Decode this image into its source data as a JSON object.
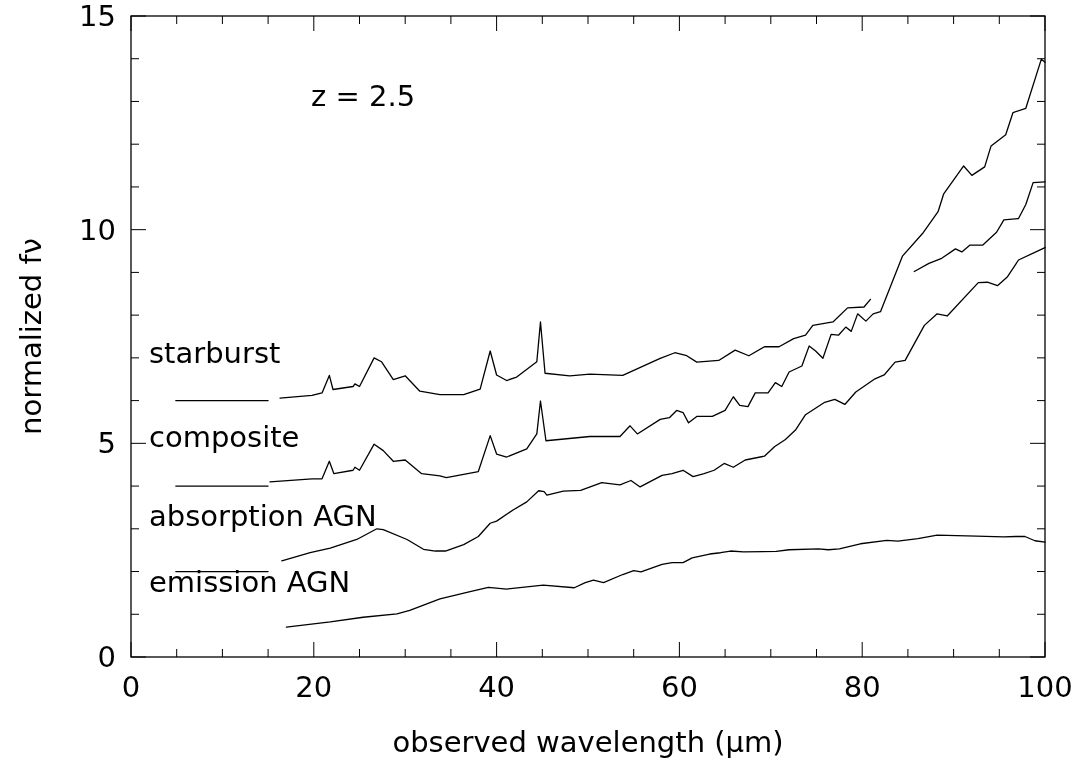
{
  "chart_data": {
    "type": "line",
    "xlabel": "observed wavelength (μm)",
    "ylabel": "normalized fν",
    "annotations": [
      "z = 2.5"
    ],
    "xlim": [
      0,
      100
    ],
    "ylim": [
      0,
      15
    ],
    "xticks": [
      0,
      {
        "value": 5,
        "label": null
      },
      {
        "value": 10,
        "label": null
      },
      {
        "value": 15,
        "label": null
      },
      20,
      {
        "value": 25,
        "label": null
      },
      {
        "value": 30,
        "label": null
      },
      {
        "value": 35,
        "label": null
      },
      40,
      {
        "value": 45,
        "label": null
      },
      {
        "value": 50,
        "label": null
      },
      {
        "value": 55,
        "label": null
      },
      60,
      {
        "value": 65,
        "label": null
      },
      {
        "value": 70,
        "label": null
      },
      {
        "value": 75,
        "label": null
      },
      80,
      {
        "value": 85,
        "label": null
      },
      {
        "value": 90,
        "label": null
      },
      {
        "value": 95,
        "label": null
      },
      100
    ],
    "yticks": [
      0,
      {
        "value": 1,
        "label": null
      },
      {
        "value": 2,
        "label": null
      },
      {
        "value": 3,
        "label": null
      },
      {
        "value": 4,
        "label": null
      },
      5,
      {
        "value": 6,
        "label": null
      },
      {
        "value": 7,
        "label": null
      },
      {
        "value": 8,
        "label": null
      },
      {
        "value": 9,
        "label": null
      },
      10,
      {
        "value": 11,
        "label": null
      },
      {
        "value": 12,
        "label": null
      },
      {
        "value": 13,
        "label": null
      },
      {
        "value": 14,
        "label": null
      },
      15
    ],
    "grid": false,
    "legend": "left",
    "marker": "none",
    "line_style": "solid",
    "series": [
      {
        "name": "starburst",
        "color": "#000000",
        "x": [
          16.3,
          19.8,
          20.9,
          21.7,
          22.1,
          24.3,
          24.5,
          25.0,
          26.6,
          27.4,
          28.7,
          30.0,
          31.6,
          33.8,
          36.4,
          38.2,
          39.3,
          40.0,
          41.1,
          42.2,
          44.4,
          44.8,
          45.3,
          48.0,
          50.2,
          53.8,
          57.9,
          59.5,
          60.8,
          61.9,
          64.3,
          66.1,
          67.6,
          69.3,
          70.9,
          72.5,
          73.8,
          74.6,
          76.8,
          78.4,
          80.2,
          80.9,
          83.3,
          85.7,
          87.3,
          88.7,
          90.2,
          90.9,
          91.8,
          93.2,
          94.7,
          95.5,
          97.1,
          97.9,
          98.7,
          100
        ],
        "values": [
          6.06,
          6.12,
          6.18,
          6.59,
          6.26,
          6.33,
          6.39,
          6.33,
          7.0,
          6.91,
          6.49,
          6.58,
          6.22,
          6.14,
          6.14,
          6.27,
          7.16,
          6.6,
          6.47,
          6.55,
          6.91,
          7.84,
          6.64,
          6.58,
          6.62,
          6.59,
          6.99,
          7.12,
          7.05,
          6.9,
          6.94,
          7.18,
          7.05,
          7.26,
          7.26,
          7.45,
          7.53,
          7.76,
          7.84,
          8.17,
          8.19,
          8.37,
          null,
          9.02,
          9.21,
          9.33,
          9.55,
          9.48,
          9.64,
          9.64,
          9.94,
          10.23,
          10.26,
          10.59,
          11.1,
          11.12
        ]
      },
      {
        "name": "composite",
        "color": "#000000",
        "x": [
          15.2,
          19.8,
          20.9,
          21.7,
          22.2,
          24.3,
          24.5,
          25.0,
          26.6,
          27.6,
          28.7,
          30.0,
          31.8,
          33.8,
          34.5,
          38.0,
          39.3,
          40.0,
          41.1,
          43.3,
          44.4,
          44.8,
          45.4,
          50.2,
          53.5,
          54.6,
          55.4,
          57.9,
          58.9,
          59.7,
          60.4,
          61.0,
          61.9,
          63.6,
          65.0,
          65.9,
          66.6,
          67.5,
          68.3,
          69.7,
          70.5,
          71.2,
          72.0,
          73.4,
          74.2,
          74.9,
          75.7,
          76.6,
          77.4,
          78.2,
          78.8,
          79.5,
          80.4,
          81.2,
          82.0,
          84.4,
          86.6,
          88.3,
          88.9,
          91.1,
          92.0,
          93.4,
          94.1,
          95.7,
          96.5,
          97.9,
          99.6,
          100
        ],
        "values": [
          4.1,
          4.17,
          4.17,
          4.58,
          4.29,
          4.37,
          4.44,
          4.37,
          4.98,
          4.83,
          4.58,
          4.61,
          4.29,
          4.24,
          4.2,
          4.34,
          5.18,
          4.75,
          4.68,
          4.87,
          5.22,
          5.99,
          5.06,
          5.16,
          5.16,
          5.41,
          5.22,
          5.56,
          5.6,
          5.77,
          5.72,
          5.48,
          5.63,
          5.63,
          5.77,
          6.09,
          5.89,
          5.86,
          6.18,
          6.18,
          6.42,
          6.33,
          6.67,
          6.81,
          7.28,
          7.16,
          6.99,
          7.55,
          7.53,
          7.72,
          7.62,
          8.03,
          7.86,
          8.03,
          8.08,
          9.38,
          9.91,
          10.42,
          10.83,
          11.49,
          11.27,
          11.47,
          11.96,
          12.22,
          12.74,
          12.84,
          13.99,
          13.92
        ]
      },
      {
        "name": "absorption AGN",
        "color": "#000000",
        "x": [
          16.5,
          19.6,
          21.8,
          24.7,
          26.9,
          27.6,
          30.2,
          32.0,
          33.3,
          34.4,
          36.4,
          38.0,
          39.3,
          40.0,
          41.8,
          43.3,
          44.6,
          45.2,
          45.5,
          47.3,
          49.2,
          51.5,
          53.5,
          54.7,
          55.7,
          58.1,
          59.2,
          60.4,
          61.5,
          62.7,
          63.8,
          64.9,
          65.9,
          67.2,
          69.3,
          70.4,
          71.6,
          72.7,
          73.8,
          75.9,
          77.0,
          78.1,
          79.3,
          81.4,
          82.4,
          83.6,
          84.7,
          86.8,
          88.2,
          89.3,
          92.7,
          93.7,
          94.8,
          95.9,
          97.1,
          100
        ],
        "values": [
          2.25,
          2.44,
          2.55,
          2.75,
          3.0,
          2.98,
          2.75,
          2.52,
          2.48,
          2.48,
          2.63,
          2.82,
          3.13,
          3.18,
          3.44,
          3.63,
          3.89,
          3.87,
          3.79,
          3.88,
          3.9,
          4.08,
          4.03,
          4.13,
          3.98,
          4.25,
          4.29,
          4.37,
          4.22,
          4.29,
          4.37,
          4.53,
          4.44,
          4.61,
          4.7,
          4.92,
          5.09,
          5.31,
          5.67,
          5.96,
          6.03,
          5.91,
          6.2,
          6.51,
          6.6,
          6.9,
          6.94,
          7.76,
          8.03,
          7.98,
          8.76,
          8.77,
          8.69,
          8.9,
          9.29,
          9.58
        ]
      },
      {
        "name": "emission AGN",
        "color": "#000000",
        "x": [
          17.0,
          21.8,
          25.4,
          29.1,
          30.5,
          33.8,
          37.1,
          39.1,
          41.1,
          45.1,
          48.5,
          49.7,
          50.6,
          51.7,
          53.8,
          55.0,
          55.8,
          58.1,
          59.2,
          60.4,
          61.4,
          63.3,
          64.5,
          65.6,
          67.0,
          70.6,
          72.0,
          75.2,
          76.3,
          77.5,
          79.8,
          82.7,
          83.9,
          86.1,
          88.2,
          92.5,
          95.5,
          96.8,
          97.8,
          98.9,
          100
        ],
        "values": [
          0.7,
          0.82,
          0.93,
          1.01,
          1.09,
          1.36,
          1.53,
          1.63,
          1.59,
          1.68,
          1.62,
          1.74,
          1.8,
          1.74,
          1.93,
          2.02,
          1.99,
          2.17,
          2.21,
          2.21,
          2.32,
          2.41,
          2.44,
          2.48,
          2.46,
          2.47,
          2.51,
          2.53,
          2.51,
          2.53,
          2.65,
          2.73,
          2.71,
          2.77,
          2.85,
          2.83,
          2.81,
          2.82,
          2.82,
          2.72,
          2.69
        ]
      },
      {
        "color": "#000000",
        "x": [
          4.9,
          15.0
        ],
        "values": [
          6,
          6
        ]
      },
      {
        "color": "#000000",
        "x": [
          4.9,
          15.0
        ],
        "values": [
          4,
          4
        ]
      },
      {
        "color": "#000000",
        "x": [
          4.9,
          15.0
        ],
        "values": [
          2,
          2
        ]
      }
    ]
  }
}
